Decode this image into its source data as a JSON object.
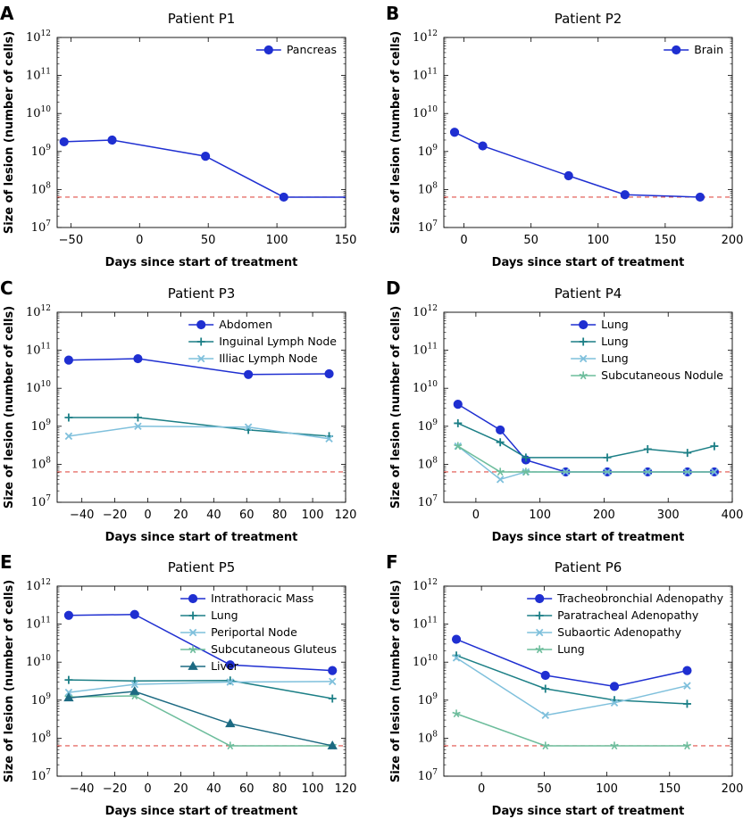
{
  "colors": {
    "series1": "#1f2fd1",
    "series2": "#1c7f86",
    "series3": "#7fc0dc",
    "series4": "#6dbd9c",
    "series5": "#1c6a82",
    "threshold": "#e0504a"
  },
  "chart_data": [
    {
      "panel": "A",
      "type": "line",
      "title": "Patient P1",
      "xlabel": "Days since start of treatment",
      "ylabel": "Size of lesion (number of cells)",
      "yscale": "log",
      "ylim_exp": [
        7,
        12
      ],
      "xlim": [
        -60,
        150
      ],
      "xticks": [
        "−50",
        "0",
        "50",
        "100",
        "150"
      ],
      "xtick_values": [
        -50,
        0,
        50,
        100,
        150
      ],
      "threshold": 63000000.0,
      "legend_position": "top-right",
      "series": [
        {
          "name": "Pancreas",
          "marker": "circle",
          "color_key": "series1",
          "x": [
            -55,
            -20,
            48,
            105,
            150
          ],
          "y": [
            1800000000.0,
            2000000000.0,
            750000000.0,
            63000000.0,
            63000000.0
          ],
          "markers": [
            true,
            true,
            true,
            true,
            false
          ]
        }
      ]
    },
    {
      "panel": "B",
      "type": "line",
      "title": "Patient P2",
      "xlabel": "Days since start of treatment",
      "ylabel": "Size of lesion (number of cells)",
      "yscale": "log",
      "ylim_exp": [
        7,
        12
      ],
      "xlim": [
        -15,
        200
      ],
      "xticks": [
        "0",
        "50",
        "100",
        "150",
        "200"
      ],
      "xtick_values": [
        0,
        50,
        100,
        150,
        200
      ],
      "threshold": 63000000.0,
      "legend_position": "top-right",
      "series": [
        {
          "name": "Brain",
          "marker": "circle",
          "color_key": "series1",
          "x": [
            -7,
            14,
            78,
            120,
            176
          ],
          "y": [
            3200000000.0,
            1400000000.0,
            230000000.0,
            73000000.0,
            63000000.0
          ],
          "markers": [
            true,
            true,
            true,
            true,
            true
          ]
        }
      ]
    },
    {
      "panel": "C",
      "type": "line",
      "title": "Patient P3",
      "xlabel": "Days since start of treatment",
      "ylabel": "Size of lesion (number of cells)",
      "yscale": "log",
      "ylim_exp": [
        7,
        12
      ],
      "xlim": [
        -55,
        120
      ],
      "xticks": [
        "−40",
        "−20",
        "0",
        "20",
        "40",
        "60",
        "80",
        "100",
        "120"
      ],
      "xtick_values": [
        -40,
        -20,
        0,
        20,
        40,
        60,
        80,
        100,
        120
      ],
      "threshold": 63000000.0,
      "legend_position": "top-right",
      "series": [
        {
          "name": "Abdomen",
          "marker": "circle",
          "color_key": "series1",
          "x": [
            -48,
            -6,
            61,
            110
          ],
          "y": [
            55000000000.0,
            60000000000.0,
            23000000000.0,
            24000000000.0
          ],
          "markers": [
            true,
            true,
            true,
            true
          ]
        },
        {
          "name": "Inguinal Lymph Node",
          "marker": "plus",
          "color_key": "series2",
          "x": [
            -48,
            -6,
            61,
            110
          ],
          "y": [
            1700000000.0,
            1700000000.0,
            800000000.0,
            550000000.0
          ],
          "markers": [
            true,
            true,
            true,
            true
          ]
        },
        {
          "name": "Illiac Lymph Node",
          "marker": "x",
          "color_key": "series3",
          "x": [
            -48,
            -6,
            61,
            110
          ],
          "y": [
            550000000.0,
            1000000000.0,
            950000000.0,
            470000000.0
          ],
          "markers": [
            true,
            true,
            true,
            true
          ]
        }
      ]
    },
    {
      "panel": "D",
      "type": "line",
      "title": "Patient P4",
      "xlabel": "Days since start of treatment",
      "ylabel": "Size of lesion (number of cells)",
      "yscale": "log",
      "ylim_exp": [
        7,
        12
      ],
      "xlim": [
        -50,
        400
      ],
      "xticks": [
        "0",
        "100",
        "200",
        "300",
        "400"
      ],
      "xtick_values": [
        0,
        100,
        200,
        300,
        400
      ],
      "threshold": 63000000.0,
      "legend_position": "top-right",
      "series": [
        {
          "name": "Lung",
          "marker": "circle",
          "color_key": "series1",
          "x": [
            -28,
            38,
            78,
            140,
            205,
            268,
            330,
            372
          ],
          "y": [
            3800000000.0,
            800000000.0,
            130000000.0,
            63000000.0,
            63000000.0,
            63000000.0,
            63000000.0,
            63000000.0
          ],
          "markers": [
            true,
            true,
            true,
            true,
            true,
            true,
            true,
            true
          ]
        },
        {
          "name": "Lung",
          "marker": "plus",
          "color_key": "series2",
          "x": [
            -28,
            38,
            78,
            140,
            205,
            268,
            330,
            372
          ],
          "y": [
            1200000000.0,
            380000000.0,
            150000000.0,
            150000000.0,
            150000000.0,
            250000000.0,
            200000000.0,
            300000000.0
          ],
          "markers": [
            true,
            true,
            true,
            false,
            true,
            true,
            true,
            true
          ]
        },
        {
          "name": "Lung",
          "marker": "x",
          "color_key": "series3",
          "x": [
            -28,
            38,
            78,
            140,
            205,
            268,
            330,
            372
          ],
          "y": [
            300000000.0,
            40000000.0,
            63000000.0,
            63000000.0,
            63000000.0,
            63000000.0,
            63000000.0,
            63000000.0
          ],
          "markers": [
            true,
            true,
            true,
            true,
            true,
            true,
            true,
            true
          ]
        },
        {
          "name": "Subcutaneous Nodule",
          "marker": "star",
          "color_key": "series4",
          "x": [
            -28,
            38,
            78,
            140,
            205,
            268,
            330,
            372
          ],
          "y": [
            300000000.0,
            63000000.0,
            63000000.0,
            63000000.0,
            63000000.0,
            63000000.0,
            63000000.0,
            63000000.0
          ],
          "markers": [
            true,
            true,
            true,
            false,
            false,
            false,
            false,
            false
          ]
        }
      ]
    },
    {
      "panel": "E",
      "type": "line",
      "title": "Patient P5",
      "xlabel": "Days since start of treatment",
      "ylabel": "Size of lesion (number of cells)",
      "yscale": "log",
      "ylim_exp": [
        7,
        12
      ],
      "xlim": [
        -55,
        120
      ],
      "xticks": [
        "−40",
        "−20",
        "0",
        "20",
        "40",
        "60",
        "80",
        "100",
        "120"
      ],
      "xtick_values": [
        -40,
        -20,
        0,
        20,
        40,
        60,
        80,
        100,
        120
      ],
      "threshold": 63000000.0,
      "legend_position": "top-right",
      "series": [
        {
          "name": "Intrathoracic Mass",
          "marker": "circle",
          "color_key": "series1",
          "x": [
            -48,
            -8,
            50,
            112
          ],
          "y": [
            170000000000.0,
            180000000000.0,
            8500000000.0,
            6000000000.0
          ],
          "markers": [
            true,
            true,
            true,
            true
          ]
        },
        {
          "name": "Lung",
          "marker": "plus",
          "color_key": "series2",
          "x": [
            -48,
            -8,
            50,
            112
          ],
          "y": [
            3400000000.0,
            3200000000.0,
            3300000000.0,
            1100000000.0
          ],
          "markers": [
            true,
            true,
            true,
            true
          ]
        },
        {
          "name": "Periportal Node",
          "marker": "x",
          "color_key": "series3",
          "x": [
            -48,
            -8,
            50,
            112
          ],
          "y": [
            1600000000.0,
            2600000000.0,
            3000000000.0,
            3100000000.0
          ],
          "markers": [
            true,
            true,
            true,
            true
          ]
        },
        {
          "name": "Subcutaneous Gluteus",
          "marker": "star",
          "color_key": "series4",
          "x": [
            -48,
            -8,
            50,
            112
          ],
          "y": [
            1200000000.0,
            1300000000.0,
            63000000.0,
            63000000.0
          ],
          "markers": [
            true,
            true,
            true,
            true
          ]
        },
        {
          "name": "Liver",
          "marker": "triangle",
          "color_key": "series5",
          "x": [
            -48,
            -8,
            50,
            112
          ],
          "y": [
            1150000000.0,
            1700000000.0,
            240000000.0,
            63000000.0
          ],
          "markers": [
            true,
            true,
            true,
            true
          ]
        }
      ]
    },
    {
      "panel": "F",
      "type": "line",
      "title": "Patient P6",
      "xlabel": "Days since start of treatment",
      "ylabel": "Size of lesion (number of cells)",
      "yscale": "log",
      "ylim_exp": [
        7,
        12
      ],
      "xlim": [
        -30,
        200
      ],
      "xticks": [
        "0",
        "50",
        "100",
        "150",
        "200"
      ],
      "xtick_values": [
        0,
        50,
        100,
        150,
        200
      ],
      "threshold": 63000000.0,
      "legend_position": "top-right",
      "series": [
        {
          "name": "Tracheobronchial Adenopathy",
          "marker": "circle",
          "color_key": "series1",
          "x": [
            -20,
            51,
            106,
            164
          ],
          "y": [
            40000000000.0,
            4500000000.0,
            2300000000.0,
            6000000000.0
          ],
          "markers": [
            true,
            true,
            true,
            true
          ]
        },
        {
          "name": "Paratracheal Adenopathy",
          "marker": "plus",
          "color_key": "series2",
          "x": [
            -20,
            51,
            106,
            164
          ],
          "y": [
            15000000000.0,
            2000000000.0,
            1000000000.0,
            800000000.0
          ],
          "markers": [
            true,
            true,
            true,
            true
          ]
        },
        {
          "name": "Subaortic Adenopathy",
          "marker": "x",
          "color_key": "series3",
          "x": [
            -20,
            51,
            106,
            164
          ],
          "y": [
            13000000000.0,
            400000000.0,
            850000000.0,
            2400000000.0
          ],
          "markers": [
            true,
            true,
            true,
            true
          ]
        },
        {
          "name": "Lung",
          "marker": "star",
          "color_key": "series4",
          "x": [
            -20,
            51,
            106,
            164
          ],
          "y": [
            440000000.0,
            63000000.0,
            63000000.0,
            63000000.0
          ],
          "markers": [
            true,
            true,
            true,
            true
          ]
        }
      ]
    }
  ]
}
